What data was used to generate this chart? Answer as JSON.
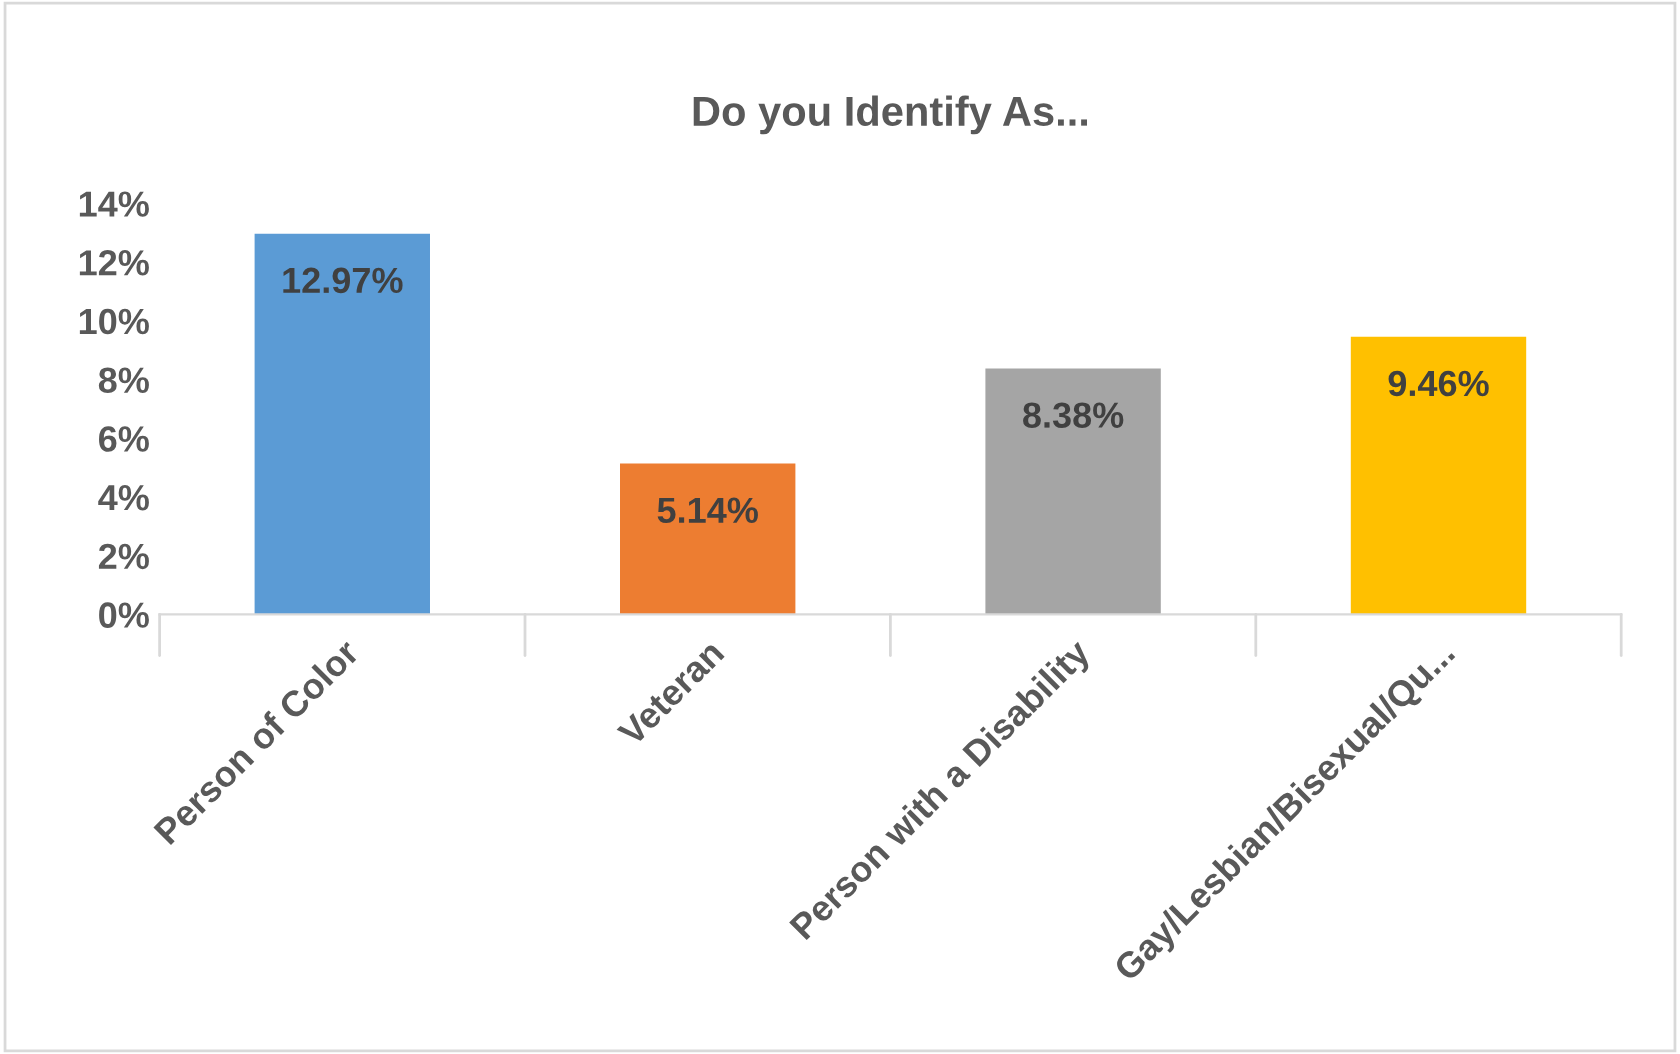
{
  "chart_data": {
    "type": "bar",
    "title": "Do you Identify As...",
    "categories": [
      "Person of Color",
      "Veteran",
      "Person with a Disability",
      "Gay/Lesbian/Bisexual/Qu..."
    ],
    "values": [
      12.97,
      5.14,
      8.38,
      9.46
    ],
    "colors": [
      "#5b9bd5",
      "#ed7d31",
      "#a5a5a5",
      "#ffc000"
    ],
    "value_labels": [
      "12.97%",
      "5.14%",
      "8.38%",
      "9.46%"
    ],
    "ylim": [
      0,
      14
    ],
    "yticks": [
      {
        "value": 0,
        "label": "0%"
      },
      {
        "value": 2,
        "label": "2%"
      },
      {
        "value": 4,
        "label": "4%"
      },
      {
        "value": 6,
        "label": "6%"
      },
      {
        "value": 8,
        "label": "8%"
      },
      {
        "value": 10,
        "label": "10%"
      },
      {
        "value": 12,
        "label": "12%"
      },
      {
        "value": 14,
        "label": "14%"
      }
    ],
    "grid": false,
    "legend": false
  }
}
